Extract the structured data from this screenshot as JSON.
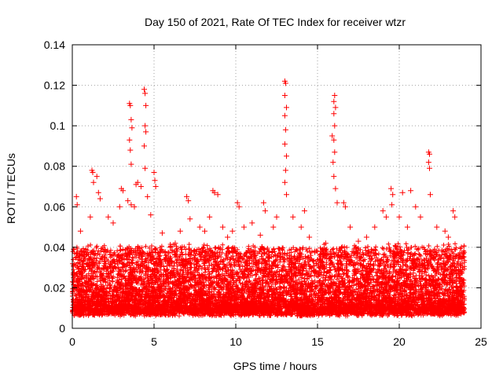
{
  "chart_data": {
    "type": "scatter",
    "title": "Day 150 of 2021, Rate Of TEC Index for receiver wtzr",
    "xlabel": "GPS time / hours",
    "ylabel": "ROTI / TECUs",
    "xlim": [
      0,
      25
    ],
    "ylim": [
      0,
      0.14
    ],
    "xticks": [
      0,
      5,
      10,
      15,
      20,
      25
    ],
    "yticks": [
      0,
      0.02,
      0.04,
      0.06,
      0.08,
      0.1,
      0.12,
      0.14
    ],
    "grid": true,
    "legend": "none",
    "marker": "plus",
    "color": "#ff0000",
    "series": [
      {
        "background_band": {
          "x_range": [
            0.0,
            24.0
          ],
          "y_range": [
            0.006,
            0.035
          ],
          "approx_point_count": 9000
        },
        "points": [
          [
            0.1,
            0.039
          ],
          [
            0.25,
            0.065
          ],
          [
            0.3,
            0.061
          ],
          [
            0.5,
            0.048
          ],
          [
            1.2,
            0.078
          ],
          [
            1.25,
            0.077
          ],
          [
            1.3,
            0.072
          ],
          [
            1.5,
            0.075
          ],
          [
            1.6,
            0.067
          ],
          [
            1.7,
            0.064
          ],
          [
            1.1,
            0.055
          ],
          [
            2.2,
            0.055
          ],
          [
            2.5,
            0.052
          ],
          [
            2.9,
            0.06
          ],
          [
            3.0,
            0.069
          ],
          [
            3.1,
            0.068
          ],
          [
            3.5,
            0.111
          ],
          [
            3.55,
            0.11
          ],
          [
            3.6,
            0.103
          ],
          [
            3.65,
            0.099
          ],
          [
            3.5,
            0.093
          ],
          [
            3.55,
            0.088
          ],
          [
            3.6,
            0.081
          ],
          [
            3.4,
            0.063
          ],
          [
            3.6,
            0.061
          ],
          [
            3.8,
            0.06
          ],
          [
            3.9,
            0.071
          ],
          [
            4.0,
            0.072
          ],
          [
            4.2,
            0.07
          ],
          [
            4.4,
            0.118
          ],
          [
            4.45,
            0.116
          ],
          [
            4.5,
            0.11
          ],
          [
            4.45,
            0.1
          ],
          [
            4.5,
            0.097
          ],
          [
            4.4,
            0.09
          ],
          [
            4.45,
            0.079
          ],
          [
            4.6,
            0.065
          ],
          [
            4.8,
            0.056
          ],
          [
            5.0,
            0.077
          ],
          [
            5.05,
            0.073
          ],
          [
            5.1,
            0.07
          ],
          [
            5.5,
            0.047
          ],
          [
            6.0,
            0.04
          ],
          [
            6.3,
            0.042
          ],
          [
            6.6,
            0.048
          ],
          [
            7.0,
            0.065
          ],
          [
            7.1,
            0.063
          ],
          [
            7.2,
            0.054
          ],
          [
            7.8,
            0.05
          ],
          [
            8.1,
            0.048
          ],
          [
            8.4,
            0.055
          ],
          [
            8.6,
            0.068
          ],
          [
            8.7,
            0.067
          ],
          [
            8.9,
            0.066
          ],
          [
            9.2,
            0.05
          ],
          [
            9.5,
            0.045
          ],
          [
            9.8,
            0.048
          ],
          [
            10.1,
            0.062
          ],
          [
            10.2,
            0.06
          ],
          [
            10.5,
            0.05
          ],
          [
            11.0,
            0.052
          ],
          [
            11.5,
            0.046
          ],
          [
            11.7,
            0.062
          ],
          [
            11.8,
            0.058
          ],
          [
            12.3,
            0.05
          ],
          [
            12.5,
            0.055
          ],
          [
            13.0,
            0.122
          ],
          [
            13.05,
            0.121
          ],
          [
            13.0,
            0.115
          ],
          [
            13.1,
            0.109
          ],
          [
            13.0,
            0.105
          ],
          [
            13.05,
            0.098
          ],
          [
            13.0,
            0.091
          ],
          [
            13.1,
            0.085
          ],
          [
            13.05,
            0.078
          ],
          [
            13.0,
            0.072
          ],
          [
            13.1,
            0.066
          ],
          [
            13.5,
            0.055
          ],
          [
            14.0,
            0.05
          ],
          [
            14.2,
            0.058
          ],
          [
            14.5,
            0.045
          ],
          [
            15.0,
            0.038
          ],
          [
            15.5,
            0.042
          ],
          [
            15.9,
            0.095
          ],
          [
            16.0,
            0.112
          ],
          [
            16.05,
            0.115
          ],
          [
            16.1,
            0.109
          ],
          [
            16.0,
            0.106
          ],
          [
            16.05,
            0.1
          ],
          [
            16.0,
            0.093
          ],
          [
            16.05,
            0.087
          ],
          [
            15.95,
            0.082
          ],
          [
            16.0,
            0.075
          ],
          [
            16.1,
            0.069
          ],
          [
            16.2,
            0.062
          ],
          [
            16.6,
            0.062
          ],
          [
            16.7,
            0.06
          ],
          [
            17.0,
            0.05
          ],
          [
            17.5,
            0.043
          ],
          [
            18.0,
            0.045
          ],
          [
            18.5,
            0.05
          ],
          [
            19.0,
            0.058
          ],
          [
            19.2,
            0.055
          ],
          [
            19.5,
            0.069
          ],
          [
            19.6,
            0.066
          ],
          [
            19.55,
            0.061
          ],
          [
            20.0,
            0.055
          ],
          [
            20.2,
            0.067
          ],
          [
            20.5,
            0.05
          ],
          [
            20.7,
            0.068
          ],
          [
            21.0,
            0.06
          ],
          [
            21.3,
            0.055
          ],
          [
            21.8,
            0.087
          ],
          [
            21.85,
            0.086
          ],
          [
            21.8,
            0.082
          ],
          [
            21.85,
            0.079
          ],
          [
            21.9,
            0.066
          ],
          [
            22.3,
            0.05
          ],
          [
            22.8,
            0.048
          ],
          [
            23.0,
            0.045
          ],
          [
            23.3,
            0.058
          ],
          [
            23.4,
            0.055
          ],
          [
            23.8,
            0.04
          ]
        ]
      }
    ]
  }
}
